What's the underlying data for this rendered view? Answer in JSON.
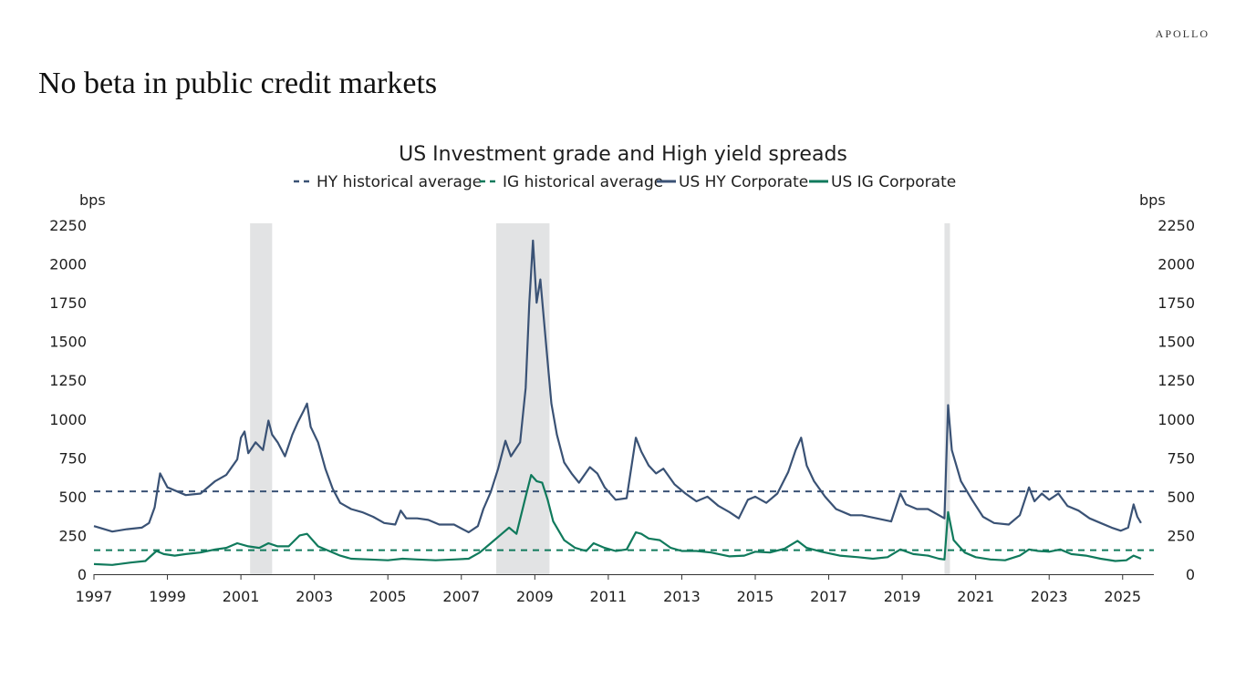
{
  "page": {
    "brand": "APOLLO",
    "title": "No beta in public credit markets"
  },
  "colors": {
    "hy": "#3a5275",
    "ig": "#107a5c",
    "recession": "#e2e3e4",
    "axis": "#333333"
  },
  "chart_data": {
    "type": "line",
    "title": "US Investment grade and High yield spreads",
    "y_unit_left": "bps",
    "y_unit_right": "bps",
    "ylim": [
      0,
      2250
    ],
    "xlim": [
      1997.0,
      2025.85
    ],
    "y_ticks": [
      "0",
      "250",
      "500",
      "750",
      "1000",
      "1250",
      "1500",
      "1750",
      "2000",
      "2250"
    ],
    "x_ticks": [
      "1997",
      "1999",
      "2001",
      "2003",
      "2005",
      "2007",
      "2009",
      "2011",
      "2013",
      "2015",
      "2017",
      "2019",
      "2021",
      "2023",
      "2025"
    ],
    "legend": [
      {
        "label": "HY historical average",
        "style": "dashed",
        "color": "#3a5275"
      },
      {
        "label": "IG historical average",
        "style": "dashed",
        "color": "#107a5c"
      },
      {
        "label": "US HY Corporate",
        "style": "solid",
        "color": "#3a5275"
      },
      {
        "label": "US IG Corporate",
        "style": "solid",
        "color": "#107a5c"
      }
    ],
    "recessions": [
      [
        2001.25,
        2001.85
      ],
      [
        2007.95,
        2009.4
      ],
      [
        2020.15,
        2020.3
      ]
    ],
    "averages": {
      "hy": 534,
      "ig": 155
    },
    "series": [
      {
        "name": "US HY Corporate",
        "color": "#3a5275",
        "points": [
          [
            1997.0,
            310
          ],
          [
            1997.5,
            275
          ],
          [
            1997.9,
            290
          ],
          [
            1998.3,
            300
          ],
          [
            1998.5,
            330
          ],
          [
            1998.65,
            430
          ],
          [
            1998.8,
            650
          ],
          [
            1999.0,
            560
          ],
          [
            1999.5,
            510
          ],
          [
            1999.9,
            520
          ],
          [
            2000.3,
            600
          ],
          [
            2000.6,
            640
          ],
          [
            2000.9,
            740
          ],
          [
            2001.0,
            880
          ],
          [
            2001.1,
            920
          ],
          [
            2001.2,
            780
          ],
          [
            2001.4,
            850
          ],
          [
            2001.6,
            800
          ],
          [
            2001.75,
            990
          ],
          [
            2001.85,
            900
          ],
          [
            2002.0,
            850
          ],
          [
            2002.2,
            760
          ],
          [
            2002.4,
            900
          ],
          [
            2002.55,
            980
          ],
          [
            2002.7,
            1050
          ],
          [
            2002.8,
            1100
          ],
          [
            2002.9,
            950
          ],
          [
            2003.1,
            850
          ],
          [
            2003.3,
            680
          ],
          [
            2003.5,
            550
          ],
          [
            2003.7,
            460
          ],
          [
            2004.0,
            420
          ],
          [
            2004.3,
            400
          ],
          [
            2004.6,
            370
          ],
          [
            2004.9,
            330
          ],
          [
            2005.2,
            320
          ],
          [
            2005.35,
            410
          ],
          [
            2005.5,
            360
          ],
          [
            2005.8,
            360
          ],
          [
            2006.1,
            350
          ],
          [
            2006.4,
            320
          ],
          [
            2006.8,
            320
          ],
          [
            2007.2,
            270
          ],
          [
            2007.45,
            310
          ],
          [
            2007.6,
            420
          ],
          [
            2007.8,
            530
          ],
          [
            2008.0,
            680
          ],
          [
            2008.2,
            860
          ],
          [
            2008.35,
            760
          ],
          [
            2008.6,
            850
          ],
          [
            2008.75,
            1200
          ],
          [
            2008.85,
            1750
          ],
          [
            2008.95,
            2150
          ],
          [
            2009.05,
            1750
          ],
          [
            2009.15,
            1900
          ],
          [
            2009.3,
            1500
          ],
          [
            2009.45,
            1100
          ],
          [
            2009.6,
            900
          ],
          [
            2009.8,
            720
          ],
          [
            2010.0,
            650
          ],
          [
            2010.2,
            590
          ],
          [
            2010.5,
            690
          ],
          [
            2010.7,
            650
          ],
          [
            2010.9,
            560
          ],
          [
            2011.2,
            480
          ],
          [
            2011.5,
            490
          ],
          [
            2011.75,
            880
          ],
          [
            2011.9,
            790
          ],
          [
            2012.1,
            700
          ],
          [
            2012.3,
            650
          ],
          [
            2012.5,
            680
          ],
          [
            2012.8,
            580
          ],
          [
            2013.1,
            520
          ],
          [
            2013.4,
            470
          ],
          [
            2013.7,
            500
          ],
          [
            2014.0,
            440
          ],
          [
            2014.3,
            400
          ],
          [
            2014.55,
            360
          ],
          [
            2014.8,
            480
          ],
          [
            2015.0,
            500
          ],
          [
            2015.3,
            460
          ],
          [
            2015.6,
            520
          ],
          [
            2015.9,
            660
          ],
          [
            2016.1,
            800
          ],
          [
            2016.25,
            880
          ],
          [
            2016.4,
            700
          ],
          [
            2016.6,
            600
          ],
          [
            2016.9,
            500
          ],
          [
            2017.2,
            420
          ],
          [
            2017.6,
            380
          ],
          [
            2017.9,
            380
          ],
          [
            2018.3,
            360
          ],
          [
            2018.7,
            340
          ],
          [
            2018.95,
            520
          ],
          [
            2019.1,
            450
          ],
          [
            2019.4,
            420
          ],
          [
            2019.7,
            420
          ],
          [
            2020.0,
            380
          ],
          [
            2020.15,
            360
          ],
          [
            2020.25,
            1090
          ],
          [
            2020.35,
            800
          ],
          [
            2020.6,
            600
          ],
          [
            2020.9,
            480
          ],
          [
            2021.2,
            370
          ],
          [
            2021.5,
            330
          ],
          [
            2021.9,
            320
          ],
          [
            2022.2,
            380
          ],
          [
            2022.45,
            560
          ],
          [
            2022.6,
            470
          ],
          [
            2022.8,
            520
          ],
          [
            2023.0,
            480
          ],
          [
            2023.25,
            520
          ],
          [
            2023.5,
            440
          ],
          [
            2023.8,
            410
          ],
          [
            2024.1,
            360
          ],
          [
            2024.4,
            330
          ],
          [
            2024.7,
            300
          ],
          [
            2024.95,
            280
          ],
          [
            2025.15,
            300
          ],
          [
            2025.3,
            450
          ],
          [
            2025.4,
            370
          ],
          [
            2025.5,
            330
          ]
        ]
      },
      {
        "name": "US IG Corporate",
        "color": "#107a5c",
        "points": [
          [
            1997.0,
            65
          ],
          [
            1997.5,
            60
          ],
          [
            1998.0,
            75
          ],
          [
            1998.4,
            85
          ],
          [
            1998.7,
            150
          ],
          [
            1998.9,
            130
          ],
          [
            1999.2,
            120
          ],
          [
            1999.5,
            130
          ],
          [
            1999.9,
            140
          ],
          [
            2000.3,
            160
          ],
          [
            2000.6,
            170
          ],
          [
            2000.9,
            200
          ],
          [
            2001.2,
            180
          ],
          [
            2001.5,
            170
          ],
          [
            2001.75,
            200
          ],
          [
            2002.0,
            180
          ],
          [
            2002.3,
            180
          ],
          [
            2002.6,
            250
          ],
          [
            2002.8,
            260
          ],
          [
            2003.1,
            180
          ],
          [
            2003.4,
            150
          ],
          [
            2003.7,
            120
          ],
          [
            2004.0,
            100
          ],
          [
            2004.5,
            95
          ],
          [
            2005.0,
            90
          ],
          [
            2005.4,
            100
          ],
          [
            2005.8,
            95
          ],
          [
            2006.3,
            90
          ],
          [
            2006.8,
            95
          ],
          [
            2007.2,
            100
          ],
          [
            2007.5,
            140
          ],
          [
            2007.8,
            200
          ],
          [
            2008.1,
            260
          ],
          [
            2008.3,
            300
          ],
          [
            2008.5,
            260
          ],
          [
            2008.75,
            500
          ],
          [
            2008.9,
            640
          ],
          [
            2009.05,
            600
          ],
          [
            2009.2,
            590
          ],
          [
            2009.35,
            480
          ],
          [
            2009.5,
            340
          ],
          [
            2009.8,
            220
          ],
          [
            2010.1,
            170
          ],
          [
            2010.4,
            150
          ],
          [
            2010.6,
            200
          ],
          [
            2010.9,
            170
          ],
          [
            2011.2,
            150
          ],
          [
            2011.5,
            160
          ],
          [
            2011.75,
            270
          ],
          [
            2011.9,
            260
          ],
          [
            2012.1,
            230
          ],
          [
            2012.4,
            220
          ],
          [
            2012.7,
            170
          ],
          [
            2013.0,
            150
          ],
          [
            2013.4,
            150
          ],
          [
            2013.8,
            140
          ],
          [
            2014.3,
            115
          ],
          [
            2014.7,
            120
          ],
          [
            2015.0,
            145
          ],
          [
            2015.4,
            140
          ],
          [
            2015.8,
            165
          ],
          [
            2016.15,
            215
          ],
          [
            2016.4,
            170
          ],
          [
            2016.8,
            145
          ],
          [
            2017.3,
            120
          ],
          [
            2017.8,
            110
          ],
          [
            2018.2,
            100
          ],
          [
            2018.6,
            110
          ],
          [
            2018.95,
            160
          ],
          [
            2019.3,
            130
          ],
          [
            2019.7,
            120
          ],
          [
            2020.0,
            100
          ],
          [
            2020.15,
            95
          ],
          [
            2020.25,
            400
          ],
          [
            2020.4,
            220
          ],
          [
            2020.7,
            140
          ],
          [
            2021.0,
            110
          ],
          [
            2021.4,
            95
          ],
          [
            2021.8,
            90
          ],
          [
            2022.2,
            120
          ],
          [
            2022.45,
            160
          ],
          [
            2022.7,
            150
          ],
          [
            2023.0,
            145
          ],
          [
            2023.3,
            160
          ],
          [
            2023.6,
            130
          ],
          [
            2024.0,
            120
          ],
          [
            2024.4,
            100
          ],
          [
            2024.8,
            85
          ],
          [
            2025.1,
            90
          ],
          [
            2025.3,
            120
          ],
          [
            2025.45,
            105
          ],
          [
            2025.5,
            100
          ]
        ]
      }
    ]
  }
}
